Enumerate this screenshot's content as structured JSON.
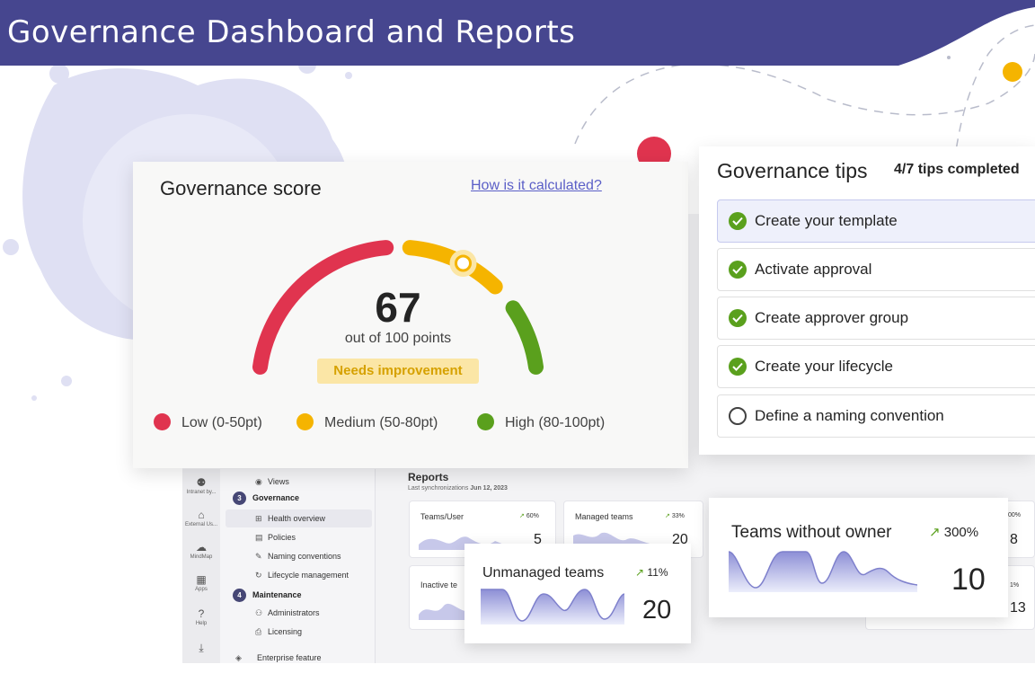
{
  "banner": {
    "title": "Governance Dashboard and Reports"
  },
  "colors": {
    "banner": "#46468f",
    "low": "#e0344f",
    "medium": "#f5b400",
    "high": "#5aa01d",
    "accent": "#5b5fc7"
  },
  "score_card": {
    "title": "Governance score",
    "link": "How is it calculated?",
    "score": "67",
    "score_value": 67,
    "out_of": "out of 100 points",
    "status": "Needs improvement",
    "legend": [
      {
        "label": "Low (0-50pt)",
        "color": "#e0344f"
      },
      {
        "label": "Medium (50-80pt)",
        "color": "#f5b400"
      },
      {
        "label": "High (80-100pt)",
        "color": "#5aa01d"
      }
    ]
  },
  "tips_card": {
    "title": "Governance tips",
    "completed": "4/7 tips completed",
    "tips": [
      {
        "label": "Create your template",
        "done": true
      },
      {
        "label": "Activate approval",
        "done": true
      },
      {
        "label": "Create approver group",
        "done": true
      },
      {
        "label": "Create your lifecycle",
        "done": true
      },
      {
        "label": "Define a naming convention",
        "done": false
      }
    ]
  },
  "rail": {
    "items": [
      {
        "icon": "people-icon",
        "glyph": "⚉",
        "label": "Intranet by..."
      },
      {
        "icon": "building-icon",
        "glyph": "⌂",
        "label": "External Us..."
      },
      {
        "icon": "brain-icon",
        "glyph": "☁",
        "label": "MindMap"
      },
      {
        "icon": "apps-icon",
        "glyph": "▦",
        "label": "Apps"
      },
      {
        "icon": "help-icon",
        "glyph": "?",
        "label": "Help"
      },
      {
        "icon": "download-icon",
        "glyph": "⤓",
        "label": ""
      }
    ]
  },
  "nav": {
    "views": "Views",
    "sections": [
      {
        "num": "3",
        "label": "Governance"
      },
      {
        "num": "4",
        "label": "Maintenance"
      }
    ],
    "governance_items": [
      "Health overview",
      "Policies",
      "Naming conventions",
      "Lifecycle management"
    ],
    "maintenance_items": [
      "Administrators",
      "Licensing"
    ],
    "enterprise": "Enterprise feature"
  },
  "reports": {
    "title": "Reports",
    "sync_label": "Last synchronizations",
    "sync_date": "Jun 12, 2023",
    "cards": [
      {
        "title": "Teams/User",
        "pct": "60%",
        "value": "5"
      },
      {
        "title": "Managed teams",
        "pct": "33%",
        "value": "20"
      },
      {
        "title": "Inactive te",
        "pct": "",
        "value": ""
      }
    ],
    "partial_values": [
      "8",
      "13"
    ],
    "partial_pcts": [
      "00%",
      "1%"
    ]
  },
  "float_cards": {
    "unmanaged": {
      "title": "Unmanaged teams",
      "pct": "11%",
      "value": "20"
    },
    "no_owner": {
      "title": "Teams without owner",
      "pct": "300%",
      "value": "10"
    }
  }
}
